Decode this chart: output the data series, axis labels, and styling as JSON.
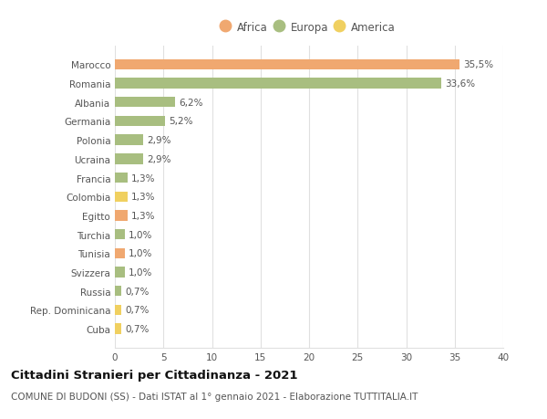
{
  "countries": [
    "Marocco",
    "Romania",
    "Albania",
    "Germania",
    "Polonia",
    "Ucraina",
    "Francia",
    "Colombia",
    "Egitto",
    "Turchia",
    "Tunisia",
    "Svizzera",
    "Russia",
    "Rep. Dominicana",
    "Cuba"
  ],
  "values": [
    35.5,
    33.6,
    6.2,
    5.2,
    2.9,
    2.9,
    1.3,
    1.3,
    1.3,
    1.0,
    1.0,
    1.0,
    0.7,
    0.7,
    0.7
  ],
  "labels": [
    "35,5%",
    "33,6%",
    "6,2%",
    "5,2%",
    "2,9%",
    "2,9%",
    "1,3%",
    "1,3%",
    "1,3%",
    "1,0%",
    "1,0%",
    "1,0%",
    "0,7%",
    "0,7%",
    "0,7%"
  ],
  "continents": [
    "Africa",
    "Europa",
    "Europa",
    "Europa",
    "Europa",
    "Europa",
    "Europa",
    "America",
    "Africa",
    "Europa",
    "Africa",
    "Europa",
    "Europa",
    "America",
    "America"
  ],
  "colors": {
    "Africa": "#F0A870",
    "Europa": "#A8BE80",
    "America": "#F0D060"
  },
  "title": "Cittadini Stranieri per Cittadinanza - 2021",
  "subtitle": "COMUNE DI BUDONI (SS) - Dati ISTAT al 1° gennaio 2021 - Elaborazione TUTTITALIA.IT",
  "xlim": [
    0,
    40
  ],
  "xticks": [
    0,
    5,
    10,
    15,
    20,
    25,
    30,
    35,
    40
  ],
  "background_color": "#ffffff",
  "grid_color": "#e0e0e0",
  "bar_height": 0.55,
  "label_fontsize": 7.5,
  "tick_fontsize": 7.5,
  "title_fontsize": 9.5,
  "subtitle_fontsize": 7.5
}
